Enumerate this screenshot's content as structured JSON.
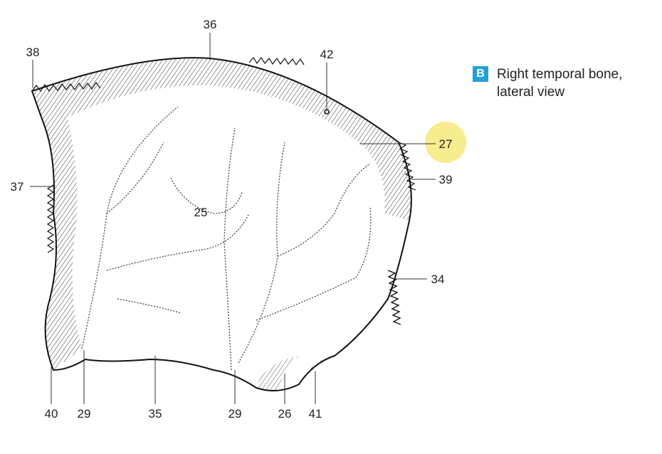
{
  "caption": {
    "badge": "B",
    "line1": "Right temporal bone,",
    "line2": "lateral view"
  },
  "labels": {
    "l36": "36",
    "l38": "38",
    "l42": "42",
    "l27": "27",
    "l39": "39",
    "l37": "37",
    "l25": "25",
    "l34": "34",
    "l40": "40",
    "l29a": "29",
    "l35": "35",
    "l29b": "29",
    "l26": "26",
    "l41": "41"
  },
  "colors": {
    "highlight": "#f7ec8e",
    "badge": "#1fa3d8",
    "line_art": "#222222"
  }
}
